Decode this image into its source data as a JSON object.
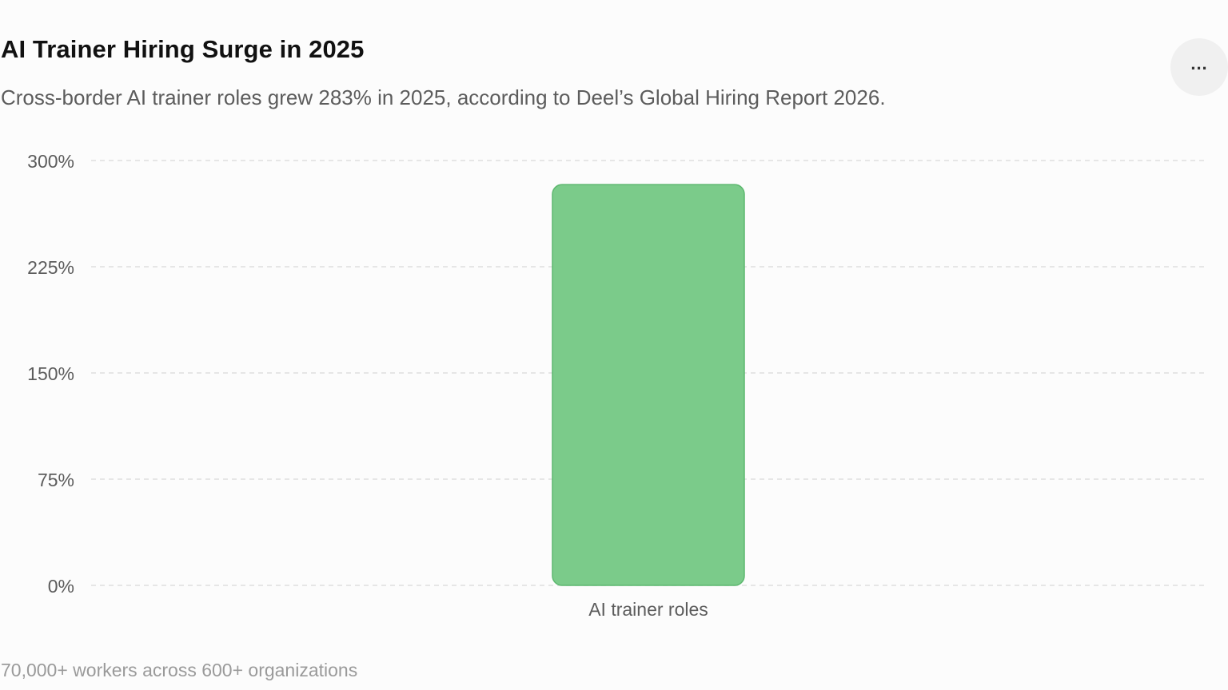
{
  "header": {
    "title": "AI Trainer Hiring Surge in 2025",
    "subtitle": "Cross-border AI trainer roles grew 283% in 2025, according to Deel’s Global Hiring Report 2026.",
    "more_icon": "more-horizontal-icon"
  },
  "footer": {
    "note": "70,000+ workers across 600+ organizations"
  },
  "colors": {
    "bar": "#7bcb8a",
    "bar_stroke": "#5db86f",
    "grid": "#dedede",
    "tick_text": "#5c5c5c"
  },
  "chart_data": {
    "type": "bar",
    "categories": [
      "AI trainer roles"
    ],
    "values": [
      283
    ],
    "ylim": [
      0,
      300
    ],
    "yticks": [
      0,
      75,
      150,
      225,
      300
    ],
    "ytick_labels": [
      "0%",
      "75%",
      "150%",
      "225%",
      "300%"
    ],
    "grid": true,
    "title": "AI Trainer Hiring Surge in 2025",
    "xlabel": "",
    "ylabel": ""
  }
}
